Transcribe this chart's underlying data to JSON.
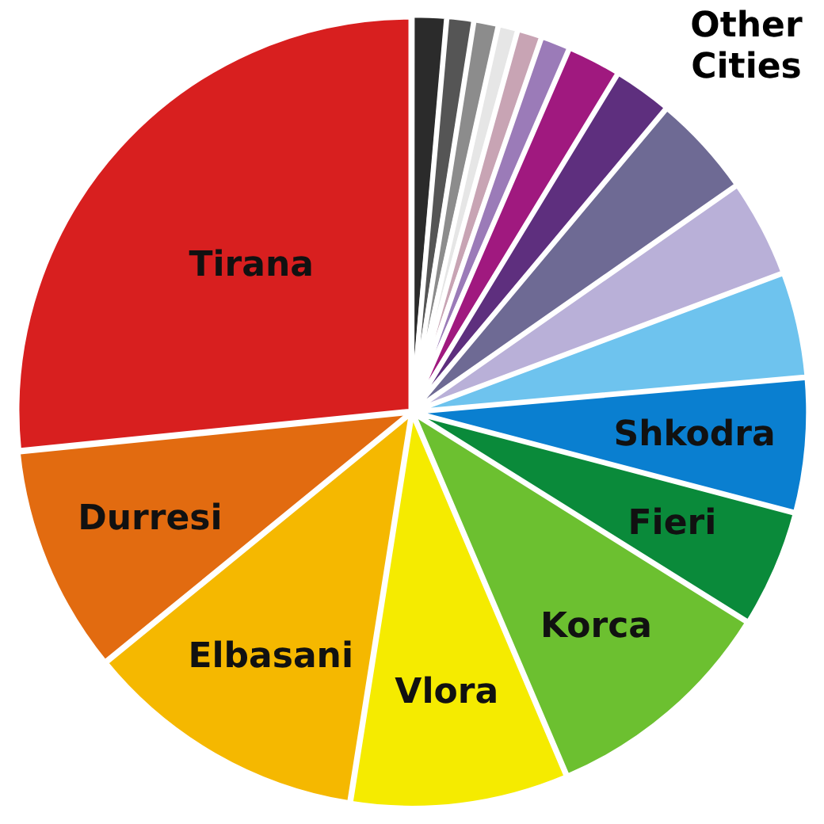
{
  "chart_data": {
    "type": "pie",
    "categories": [
      null,
      null,
      null,
      null,
      null,
      null,
      null,
      null,
      null,
      null,
      null,
      "Shkodra",
      "Fieri",
      "Korca",
      "Vlora",
      "Elbasani",
      "Durresi",
      "Tirana"
    ],
    "values": [
      1.4,
      1.1,
      1.0,
      0.8,
      1.0,
      1.2,
      2.2,
      2.4,
      4.2,
      4.0,
      4.3,
      5.5,
      4.8,
      9.7,
      8.9,
      11.6,
      9.3,
      26.6
    ],
    "colors": [
      "#2b2b2b",
      "#555555",
      "#8c8c8c",
      "#e6e6e6",
      "#c8a4b4",
      "#9b7bb8",
      "#a0197f",
      "#5e2f7e",
      "#6e6a94",
      "#b9b0d8",
      "#6ec3ee",
      "#0a7fd0",
      "#0a8a3a",
      "#6cc030",
      "#f5eb00",
      "#f5b800",
      "#e26b10",
      "#d81f1f"
    ],
    "annotations": [
      "Other Cities"
    ],
    "legend": false
  }
}
